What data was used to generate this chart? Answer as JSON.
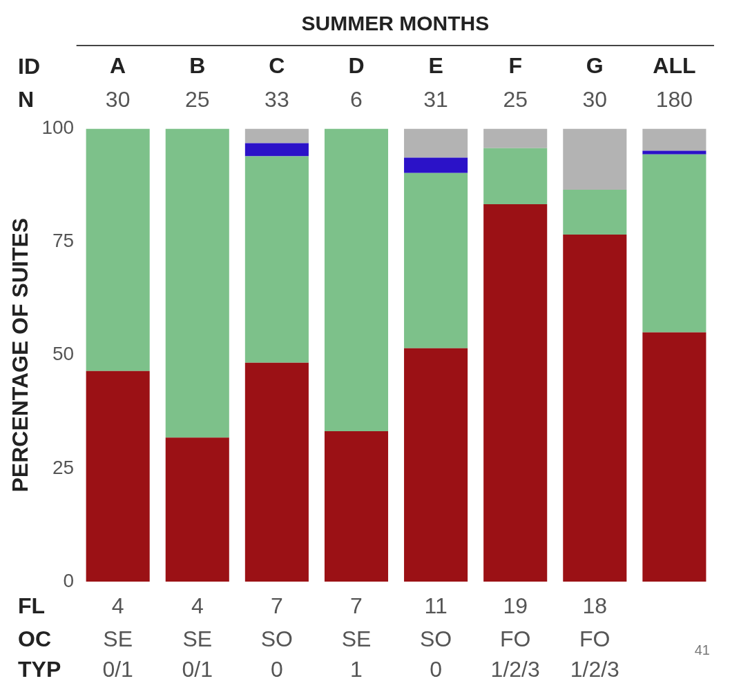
{
  "chart_data": {
    "type": "bar",
    "title": "SUMMER MONTHS",
    "ylabel": "PERCENTAGE OF SUITES",
    "categories": [
      "A",
      "B",
      "C",
      "D",
      "E",
      "F",
      "G",
      "ALL"
    ],
    "stacked": true,
    "series": [
      {
        "color": "#9b1115",
        "values": [
          46.5,
          31.8,
          48.3,
          33.2,
          51.5,
          83.3,
          76.6,
          55.0
        ]
      },
      {
        "color": "#7dc18a",
        "values": [
          53.5,
          68.2,
          45.6,
          66.8,
          38.7,
          12.4,
          9.9,
          39.3
        ]
      },
      {
        "color": "#2b12c8",
        "values": [
          null,
          null,
          2.9,
          null,
          3.4,
          null,
          null,
          0.8
        ]
      },
      {
        "color": "#b3b3b3",
        "values": [
          null,
          null,
          3.2,
          null,
          6.4,
          4.3,
          13.5,
          4.9
        ]
      }
    ],
    "ylim": [
      0,
      100
    ],
    "yticks": [
      0,
      25,
      50,
      75,
      100
    ],
    "grid": false,
    "legend": false,
    "annotations": [
      "ID",
      "N",
      "FL",
      "OC",
      "TYP",
      "30",
      "25",
      "33",
      "6",
      "31",
      "25",
      "30",
      "180",
      "4",
      "4",
      "7",
      "7",
      "11",
      "19",
      "18",
      "SE",
      "SE",
      "SO",
      "SE",
      "SO",
      "FO",
      "FO",
      "0/1",
      "0/1",
      "0",
      "1",
      "0",
      "1/2/3",
      "1/2/3",
      "41"
    ]
  }
}
